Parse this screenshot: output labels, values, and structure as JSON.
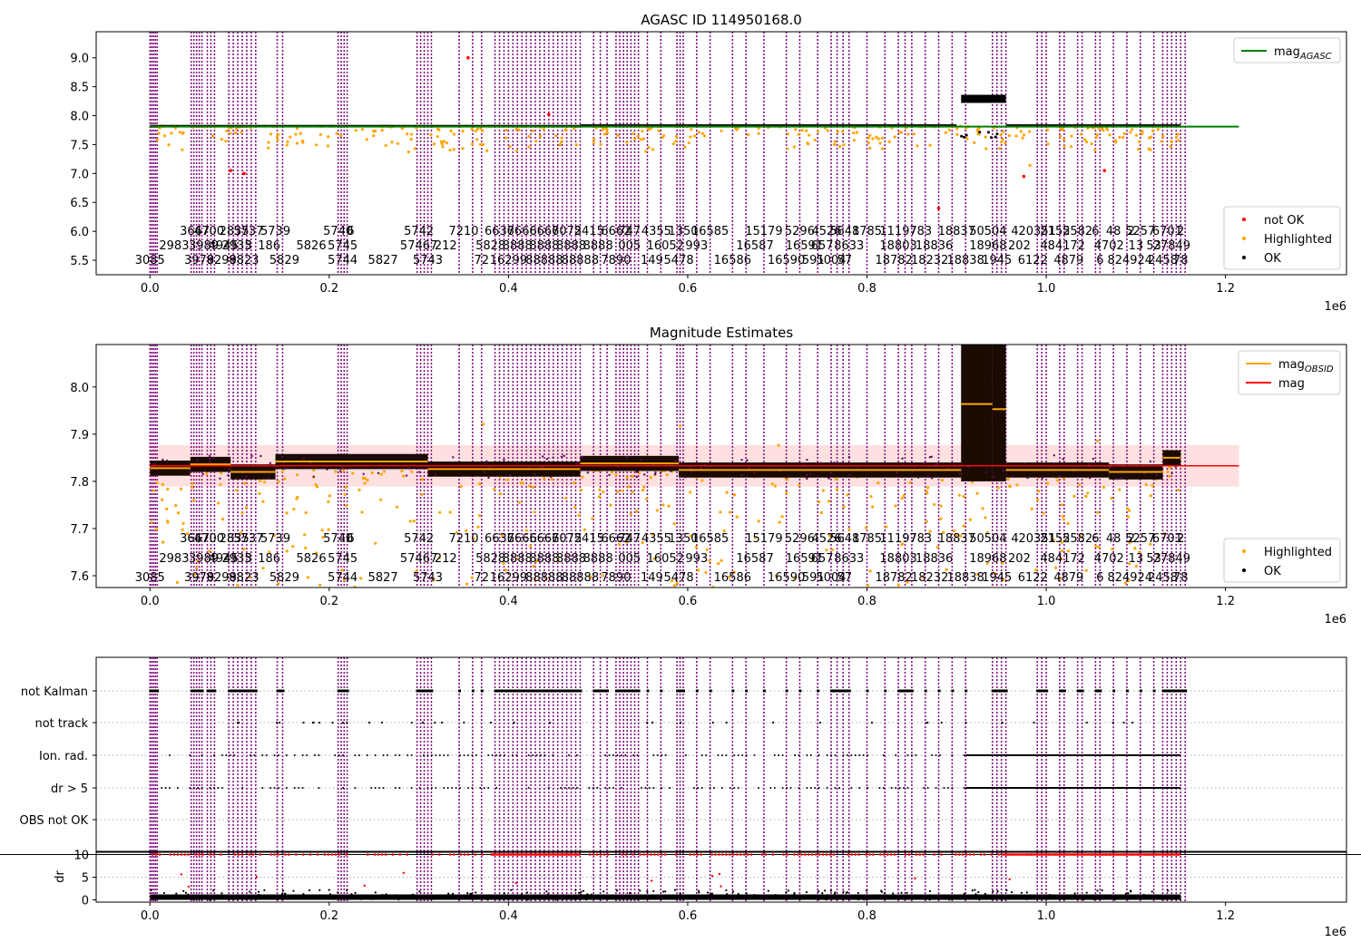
{
  "chart_data": [
    {
      "type": "scatter",
      "title": "AGASC ID 114950168.0",
      "xlabel": "",
      "ylabel": "",
      "x_offset_label": "1e6",
      "xlim": [
        -0.06,
        1.335
      ],
      "ylim": [
        5.25,
        9.45
      ],
      "xticks": [
        0.0,
        0.2,
        0.4,
        0.6,
        0.8,
        1.0,
        1.2
      ],
      "xtick_labels": [
        "0.0",
        "0.2",
        "0.4",
        "0.6",
        "0.8",
        "1.0",
        "1.2"
      ],
      "yticks": [
        5.5,
        6.0,
        6.5,
        7.0,
        7.5,
        8.0,
        8.5,
        9.0
      ],
      "ytick_labels": [
        "5.5",
        "6.0",
        "6.5",
        "7.0",
        "7.5",
        "8.0",
        "8.5",
        "9.0"
      ],
      "hline": {
        "name": "mag_AGASC",
        "value": 7.81,
        "x_range": [
          0.0,
          1.215
        ],
        "color": "#008000"
      },
      "legend_upper": {
        "position": "upper right",
        "entries": [
          {
            "label": "mag",
            "sub": "AGASC",
            "color": "#008000",
            "kind": "line"
          }
        ]
      },
      "legend_lower": {
        "position": "lower right",
        "entries": [
          {
            "label": "not OK",
            "color": "#ff0000",
            "kind": "dot"
          },
          {
            "label": "Highlighted",
            "color": "#ffa500",
            "kind": "dot"
          },
          {
            "label": "OK",
            "color": "#000000",
            "kind": "dot"
          }
        ]
      },
      "ok_segments": [
        {
          "x": [
            0.0,
            0.3
          ],
          "y": [
            7.81,
            7.84
          ]
        },
        {
          "x": [
            0.3,
            0.48
          ],
          "y": [
            7.8,
            7.84
          ]
        },
        {
          "x": [
            0.48,
            0.9
          ],
          "y": [
            7.81,
            7.85
          ]
        },
        {
          "x": [
            0.905,
            0.955
          ],
          "y": [
            8.22,
            8.36
          ]
        },
        {
          "x": [
            0.955,
            1.15
          ],
          "y": [
            7.8,
            7.85
          ]
        }
      ],
      "not_ok_points": [
        [
          0.355,
          9.0
        ],
        [
          0.09,
          7.05
        ],
        [
          0.105,
          7.0
        ],
        [
          0.445,
          8.02
        ],
        [
          0.88,
          6.4
        ],
        [
          1.065,
          7.05
        ],
        [
          0.975,
          6.95
        ]
      ]
    },
    {
      "type": "scatter",
      "title": "Magnitude Estimates",
      "xlabel": "",
      "ylabel": "",
      "x_offset_label": "1e6",
      "xlim": [
        -0.06,
        1.335
      ],
      "ylim": [
        7.575,
        8.09
      ],
      "xticks": [
        0.0,
        0.2,
        0.4,
        0.6,
        0.8,
        1.0,
        1.2
      ],
      "xtick_labels": [
        "0.0",
        "0.2",
        "0.4",
        "0.6",
        "0.8",
        "1.0",
        "1.2"
      ],
      "yticks": [
        7.6,
        7.7,
        7.8,
        7.9,
        8.0
      ],
      "ytick_labels": [
        "7.6",
        "7.7",
        "7.8",
        "7.9",
        "8.0"
      ],
      "mag": {
        "value": 7.833,
        "band": [
          7.789,
          7.877
        ],
        "x_range": [
          0.0,
          1.215
        ],
        "color": "#ff0000"
      },
      "legend_upper": {
        "position": "upper right",
        "entries": [
          {
            "label": "mag",
            "sub": "OBSID",
            "color": "#ffa500",
            "kind": "line"
          },
          {
            "label": "mag",
            "sub": "",
            "color": "#ff0000",
            "kind": "line"
          }
        ]
      },
      "legend_lower": {
        "position": "lower right",
        "entries": [
          {
            "label": "Highlighted",
            "color": "#ffa500",
            "kind": "dot"
          },
          {
            "label": "OK",
            "color": "#000000",
            "kind": "dot"
          }
        ]
      },
      "obsid_mag": [
        {
          "x": [
            0.0,
            0.045
          ],
          "y": 7.828
        },
        {
          "x": [
            0.045,
            0.09
          ],
          "y": 7.836
        },
        {
          "x": [
            0.09,
            0.14
          ],
          "y": 7.82
        },
        {
          "x": [
            0.14,
            0.31
          ],
          "y": 7.842
        },
        {
          "x": [
            0.31,
            0.48
          ],
          "y": 7.826
        },
        {
          "x": [
            0.48,
            0.59
          ],
          "y": 7.838
        },
        {
          "x": [
            0.59,
            0.905
          ],
          "y": 7.824
        },
        {
          "x": [
            0.905,
            0.94
          ],
          "y": 7.964
        },
        {
          "x": [
            0.94,
            0.955
          ],
          "y": 7.953
        },
        {
          "x": [
            0.955,
            1.07
          ],
          "y": 7.824
        },
        {
          "x": [
            1.07,
            1.13
          ],
          "y": 7.82
        },
        {
          "x": [
            1.13,
            1.15
          ],
          "y": 7.85
        }
      ]
    },
    {
      "type": "scatter",
      "title": "",
      "xlabel": "",
      "x_offset_label": "1e6",
      "xlim": [
        -0.06,
        1.335
      ],
      "xticks": [
        0.0,
        0.2,
        0.4,
        0.6,
        0.8,
        1.0,
        1.2
      ],
      "xtick_labels": [
        "0.0",
        "0.2",
        "0.4",
        "0.6",
        "0.8",
        "1.0",
        "1.2"
      ],
      "flag_rows": [
        "not Kalman",
        "not track",
        "Ion. rad.",
        "dr > 5",
        "OBS not OK"
      ],
      "dr_panel": {
        "ylabel": "dr",
        "ylim": [
          -0.5,
          10.5
        ],
        "yticks": [
          0,
          5,
          10
        ],
        "ytick_labels": [
          "0",
          "5",
          "10"
        ],
        "threshold_line": 10,
        "clipped_value": 10,
        "typical_dr": [
          0.0,
          1.2
        ]
      }
    }
  ],
  "obsids": {
    "row1": [
      {
        "x": 0.05,
        "label": "3667"
      },
      {
        "x": 0.066,
        "label": "4700"
      },
      {
        "x": 0.094,
        "label": "2835"
      },
      {
        "x": 0.11,
        "label": "5737"
      },
      {
        "x": 0.14,
        "label": "5739"
      },
      {
        "x": 0.21,
        "label": "5740"
      },
      {
        "x": 0.224,
        "label": "6"
      },
      {
        "x": 0.3,
        "label": "5742"
      },
      {
        "x": 0.35,
        "label": "7210"
      },
      {
        "x": 0.39,
        "label": "6637"
      },
      {
        "x": 0.415,
        "label": "6666"
      },
      {
        "x": 0.44,
        "label": "6666"
      },
      {
        "x": 0.465,
        "label": "7075"
      },
      {
        "x": 0.49,
        "label": "2415"
      },
      {
        "x": 0.52,
        "label": "6662"
      },
      {
        "x": 0.535,
        "label": "747"
      },
      {
        "x": 0.565,
        "label": "4355"
      },
      {
        "x": 0.595,
        "label": "1350"
      },
      {
        "x": 0.625,
        "label": "16585"
      },
      {
        "x": 0.685,
        "label": "15179"
      },
      {
        "x": 0.725,
        "label": "5296"
      },
      {
        "x": 0.755,
        "label": "4526"
      },
      {
        "x": 0.775,
        "label": "5641"
      },
      {
        "x": 0.8,
        "label": "8785"
      },
      {
        "x": 0.835,
        "label": "11197"
      },
      {
        "x": 0.86,
        "label": "783"
      },
      {
        "x": 0.9,
        "label": "18837"
      },
      {
        "x": 0.935,
        "label": "50504"
      },
      {
        "x": 0.965,
        "label": "4"
      },
      {
        "x": 0.99,
        "label": "20351"
      },
      {
        "x": 1.01,
        "label": "2152"
      },
      {
        "x": 1.035,
        "label": "5582"
      },
      {
        "x": 1.055,
        "label": "6"
      },
      {
        "x": 1.075,
        "label": "48"
      },
      {
        "x": 1.095,
        "label": "2"
      },
      {
        "x": 1.105,
        "label": "5257"
      },
      {
        "x": 1.135,
        "label": "6701"
      },
      {
        "x": 1.15,
        "label": "2"
      }
    ],
    "row2": [
      {
        "x": 0.027,
        "label": "2983"
      },
      {
        "x": 0.06,
        "label": "3989"
      },
      {
        "x": 0.082,
        "label": "4945"
      },
      {
        "x": 0.097,
        "label": "2935"
      },
      {
        "x": 0.11,
        "label": "3"
      },
      {
        "x": 0.133,
        "label": "186"
      },
      {
        "x": 0.18,
        "label": "5826"
      },
      {
        "x": 0.215,
        "label": "5745"
      },
      {
        "x": 0.3,
        "label": "57467"
      },
      {
        "x": 0.33,
        "label": "212"
      },
      {
        "x": 0.38,
        "label": "5828"
      },
      {
        "x": 0.41,
        "label": "8888"
      },
      {
        "x": 0.44,
        "label": "8888"
      },
      {
        "x": 0.47,
        "label": "8888"
      },
      {
        "x": 0.5,
        "label": "8888"
      },
      {
        "x": 0.535,
        "label": "005"
      },
      {
        "x": 0.575,
        "label": "16052"
      },
      {
        "x": 0.61,
        "label": "993"
      },
      {
        "x": 0.675,
        "label": "16587"
      },
      {
        "x": 0.73,
        "label": "16591"
      },
      {
        "x": 0.75,
        "label": "657"
      },
      {
        "x": 0.78,
        "label": "8633"
      },
      {
        "x": 0.835,
        "label": "18803"
      },
      {
        "x": 0.875,
        "label": "18836"
      },
      {
        "x": 0.935,
        "label": "18968"
      },
      {
        "x": 0.97,
        "label": "202"
      },
      {
        "x": 1.01,
        "label": "4841"
      },
      {
        "x": 1.035,
        "label": "72"
      },
      {
        "x": 1.07,
        "label": "4702"
      },
      {
        "x": 1.1,
        "label": "13"
      },
      {
        "x": 1.12,
        "label": "53"
      },
      {
        "x": 1.14,
        "label": "27849"
      }
    ],
    "row3": [
      {
        "x": 0.0,
        "label": "3085"
      },
      {
        "x": 0.055,
        "label": "3979"
      },
      {
        "x": 0.08,
        "label": "8299"
      },
      {
        "x": 0.105,
        "label": "8823"
      },
      {
        "x": 0.15,
        "label": "5829"
      },
      {
        "x": 0.215,
        "label": "5744"
      },
      {
        "x": 0.26,
        "label": "5827"
      },
      {
        "x": 0.31,
        "label": "5743"
      },
      {
        "x": 0.37,
        "label": "72"
      },
      {
        "x": 0.4,
        "label": "16299"
      },
      {
        "x": 0.44,
        "label": "88888"
      },
      {
        "x": 0.48,
        "label": "88888"
      },
      {
        "x": 0.52,
        "label": "7890"
      },
      {
        "x": 0.56,
        "label": "149"
      },
      {
        "x": 0.59,
        "label": "5478"
      },
      {
        "x": 0.65,
        "label": "16586"
      },
      {
        "x": 0.71,
        "label": "16590"
      },
      {
        "x": 0.74,
        "label": "591"
      },
      {
        "x": 0.76,
        "label": "5004"
      },
      {
        "x": 0.775,
        "label": "57"
      },
      {
        "x": 0.83,
        "label": "18782"
      },
      {
        "x": 0.87,
        "label": "18232"
      },
      {
        "x": 0.91,
        "label": "18838"
      },
      {
        "x": 0.945,
        "label": "1945"
      },
      {
        "x": 0.985,
        "label": "6122"
      },
      {
        "x": 1.025,
        "label": "4879"
      },
      {
        "x": 1.06,
        "label": "6"
      },
      {
        "x": 1.085,
        "label": "8249"
      },
      {
        "x": 1.11,
        "label": "24"
      },
      {
        "x": 1.13,
        "label": "2458"
      },
      {
        "x": 1.15,
        "label": "78"
      }
    ]
  },
  "obs_boundaries": [
    [
      0.0,
      0.008,
      5
    ],
    [
      0.046,
      0.058,
      5
    ],
    [
      0.064,
      0.072,
      3
    ],
    [
      0.088,
      0.118,
      7
    ],
    [
      0.142,
      0.148,
      2
    ],
    [
      0.21,
      0.22,
      4
    ],
    [
      0.298,
      0.314,
      5
    ],
    [
      0.345,
      0.345,
      1
    ],
    [
      0.36,
      0.36,
      1
    ],
    [
      0.37,
      0.37,
      1
    ],
    [
      0.385,
      0.48,
      20
    ],
    [
      0.495,
      0.51,
      3
    ],
    [
      0.52,
      0.545,
      7
    ],
    [
      0.555,
      0.555,
      1
    ],
    [
      0.57,
      0.57,
      1
    ],
    [
      0.588,
      0.595,
      3
    ],
    [
      0.61,
      0.61,
      1
    ],
    [
      0.625,
      0.625,
      1
    ],
    [
      0.65,
      0.65,
      1
    ],
    [
      0.665,
      0.665,
      1
    ],
    [
      0.685,
      0.685,
      1
    ],
    [
      0.71,
      0.71,
      1
    ],
    [
      0.725,
      0.725,
      1
    ],
    [
      0.745,
      0.745,
      1
    ],
    [
      0.76,
      0.78,
      4
    ],
    [
      0.8,
      0.8,
      1
    ],
    [
      0.82,
      0.82,
      1
    ],
    [
      0.835,
      0.85,
      3
    ],
    [
      0.865,
      0.865,
      1
    ],
    [
      0.88,
      0.88,
      1
    ],
    [
      0.895,
      0.895,
      1
    ],
    [
      0.91,
      0.91,
      1
    ],
    [
      0.94,
      0.955,
      4
    ],
    [
      0.99,
      1.0,
      3
    ],
    [
      1.015,
      1.02,
      2
    ],
    [
      1.035,
      1.04,
      2
    ],
    [
      1.055,
      1.06,
      2
    ],
    [
      1.075,
      1.075,
      1
    ],
    [
      1.09,
      1.09,
      1
    ],
    [
      1.105,
      1.105,
      1
    ],
    [
      1.12,
      1.12,
      1
    ],
    [
      1.13,
      1.155,
      6
    ]
  ]
}
